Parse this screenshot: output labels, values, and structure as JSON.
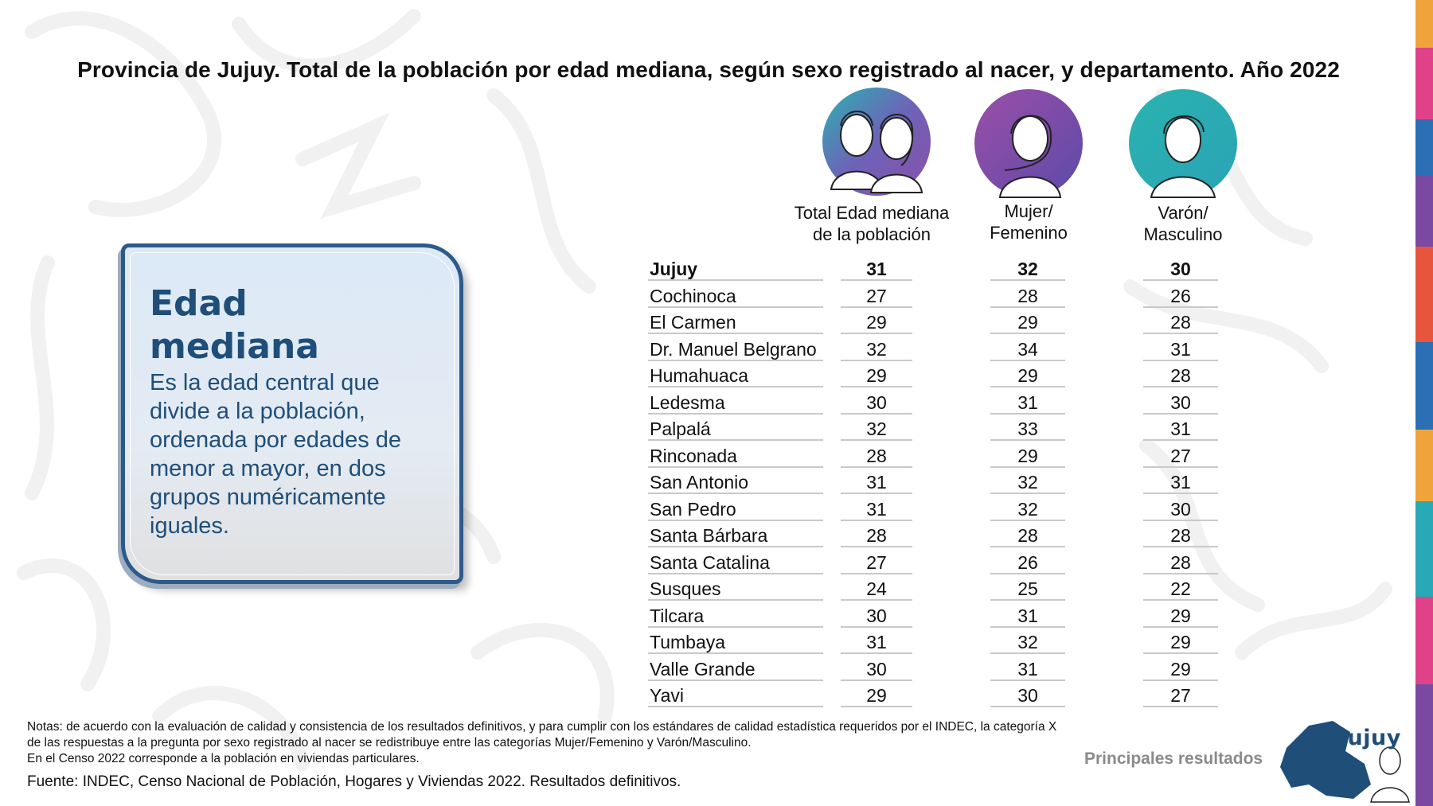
{
  "title": "Provincia de Jujuy. Total de la población por edad mediana, según sexo registrado al nacer, y departamento. Año 2022",
  "columns": {
    "total": {
      "line1": "Total Edad mediana",
      "line2": "de la población",
      "icon": "two-people-icon"
    },
    "female": {
      "line1": "Mujer/",
      "line2": "Femenino",
      "icon": "woman-icon"
    },
    "male": {
      "line1": "Varón/",
      "line2": "Masculino",
      "icon": "man-icon"
    }
  },
  "rows": [
    {
      "name": "Jujuy",
      "total": "31",
      "female": "32",
      "male": "30"
    },
    {
      "name": "Cochinoca",
      "total": "27",
      "female": "28",
      "male": "26"
    },
    {
      "name": "El Carmen",
      "total": "29",
      "female": "29",
      "male": "28"
    },
    {
      "name": "Dr. Manuel Belgrano",
      "total": "32",
      "female": "34",
      "male": "31"
    },
    {
      "name": "Humahuaca",
      "total": "29",
      "female": "29",
      "male": "28"
    },
    {
      "name": "Ledesma",
      "total": "30",
      "female": "31",
      "male": "30"
    },
    {
      "name": "Palpalá",
      "total": "32",
      "female": "33",
      "male": "31"
    },
    {
      "name": "Rinconada",
      "total": "28",
      "female": "29",
      "male": "27"
    },
    {
      "name": "San Antonio",
      "total": "31",
      "female": "32",
      "male": "31"
    },
    {
      "name": "San Pedro",
      "total": "31",
      "female": "32",
      "male": "30"
    },
    {
      "name": "Santa Bárbara",
      "total": "28",
      "female": "28",
      "male": "28"
    },
    {
      "name": "Santa Catalina",
      "total": "27",
      "female": "26",
      "male": "28"
    },
    {
      "name": "Susques",
      "total": "24",
      "female": "25",
      "male": "22"
    },
    {
      "name": "Tilcara",
      "total": "30",
      "female": "31",
      "male": "29"
    },
    {
      "name": "Tumbaya",
      "total": "31",
      "female": "32",
      "male": "29"
    },
    {
      "name": "Valle Grande",
      "total": "30",
      "female": "31",
      "male": "29"
    },
    {
      "name": "Yavi",
      "total": "29",
      "female": "30",
      "male": "27"
    }
  ],
  "definition": {
    "title_line1": "Edad",
    "title_line2": "mediana",
    "text": "Es la edad central que divide a la población, ordenada por edades de menor a mayor, en dos grupos numéricamente iguales."
  },
  "notes": {
    "line1": "Notas: de acuerdo con la evaluación de calidad y consistencia de los resultados definitivos, y para cumplir con los estándares de calidad estadística requeridos por el INDEC, la categoría X",
    "line2": "de las respuestas a la pregunta por sexo registrado al nacer se redistribuye entre las categorías Mujer/Femenino y Varón/Masculino.",
    "line3": "En el Censo 2022 corresponde a la población en viviendas particulares."
  },
  "source": "Fuente: INDEC, Censo Nacional de Población, Hogares y Viviendas 2022. Resultados definitivos.",
  "footer": {
    "label": "Principales resultados",
    "province": "Jujuy"
  },
  "colors": {
    "accent": "#1f4e79",
    "female": "#7b4fa8",
    "male": "#2bb3b0",
    "muted": "#8a8a8a"
  }
}
